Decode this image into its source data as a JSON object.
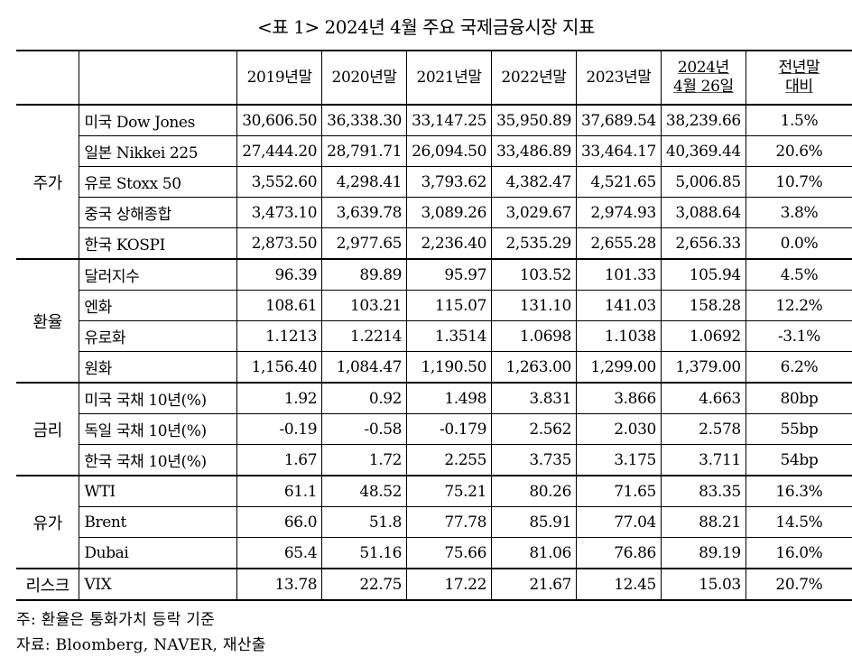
{
  "title": "<표 1> 2024년 4월 주요 국제금융시장 지표",
  "headers": [
    "",
    "",
    "2019년말",
    "2020년말",
    "2021년말",
    "2022년말",
    "2023년말",
    "2024년\n4월 26일",
    "전년말\n대비"
  ],
  "groups": [
    {
      "category": "주가",
      "rows": [
        {
          "label": "미국 Dow Jones",
          "values": [
            "30,606.50",
            "36,338.30",
            "33,147.25",
            "35,950.89",
            "37,689.54",
            "38,239.66"
          ],
          "change": "1.5%"
        },
        {
          "label": "일본 Nikkei 225",
          "values": [
            "27,444.20",
            "28,791.71",
            "26,094.50",
            "33,486.89",
            "33,464.17",
            "40,369.44"
          ],
          "change": "20.6%"
        },
        {
          "label": "유로 Stoxx 50",
          "values": [
            "3,552.60",
            "4,298.41",
            "3,793.62",
            "4,382.47",
            "4,521.65",
            "5,006.85"
          ],
          "change": "10.7%"
        },
        {
          "label": "중국 상해종합",
          "values": [
            "3,473.10",
            "3,639.78",
            "3,089.26",
            "3,029.67",
            "2,974.93",
            "3,088.64"
          ],
          "change": "3.8%"
        },
        {
          "label": "한국 KOSPI",
          "values": [
            "2,873.50",
            "2,977.65",
            "2,236.40",
            "2,535.29",
            "2,655.28",
            "2,656.33"
          ],
          "change": "0.0%"
        }
      ]
    },
    {
      "category": "환율",
      "rows": [
        {
          "label": "달러지수",
          "values": [
            "96.39",
            "89.89",
            "95.97",
            "103.52",
            "101.33",
            "105.94"
          ],
          "change": "4.5%"
        },
        {
          "label": "엔화",
          "values": [
            "108.61",
            "103.21",
            "115.07",
            "131.10",
            "141.03",
            "158.28"
          ],
          "change": "12.2%"
        },
        {
          "label": "유로화",
          "values": [
            "1.1213",
            "1.2214",
            "1.3514",
            "1.0698",
            "1.1038",
            "1.0692"
          ],
          "change": "-3.1%"
        },
        {
          "label": "원화",
          "values": [
            "1,156.40",
            "1,084.47",
            "1,190.50",
            "1,263.00",
            "1,299.00",
            "1,379.00"
          ],
          "change": "6.2%"
        }
      ]
    },
    {
      "category": "금리",
      "rows": [
        {
          "label": "미국 국채 10년(%)",
          "values": [
            "1.92",
            "0.92",
            "1.498",
            "3.831",
            "3.866",
            "4.663"
          ],
          "change": "80bp"
        },
        {
          "label": "독일 국채 10년(%)",
          "values": [
            "-0.19",
            "-0.58",
            "-0.179",
            "2.562",
            "2.030",
            "2.578"
          ],
          "change": "55bp"
        },
        {
          "label": "한국 국채 10년(%)",
          "values": [
            "1.67",
            "1.72",
            "2.255",
            "3.735",
            "3.175",
            "3.711"
          ],
          "change": "54bp"
        }
      ]
    },
    {
      "category": "유가",
      "rows": [
        {
          "label": "WTI",
          "values": [
            "61.1",
            "48.52",
            "75.21",
            "80.26",
            "71.65",
            "83.35"
          ],
          "change": "16.3%"
        },
        {
          "label": "Brent",
          "values": [
            "66.0",
            "51.8",
            "77.78",
            "85.91",
            "77.04",
            "88.21"
          ],
          "change": "14.5%"
        },
        {
          "label": "Dubai",
          "values": [
            "65.4",
            "51.16",
            "75.66",
            "81.06",
            "76.86",
            "89.19"
          ],
          "change": "16.0%"
        }
      ]
    },
    {
      "category": "리스크",
      "rows": [
        {
          "label": "VIX",
          "values": [
            "13.78",
            "22.75",
            "17.22",
            "21.67",
            "12.45",
            "15.03"
          ],
          "change": "20.7%"
        }
      ]
    }
  ],
  "notes": [
    "주: 환율은 통화가치 등락 기준",
    "자료: Bloomberg, NAVER, 재산출"
  ]
}
